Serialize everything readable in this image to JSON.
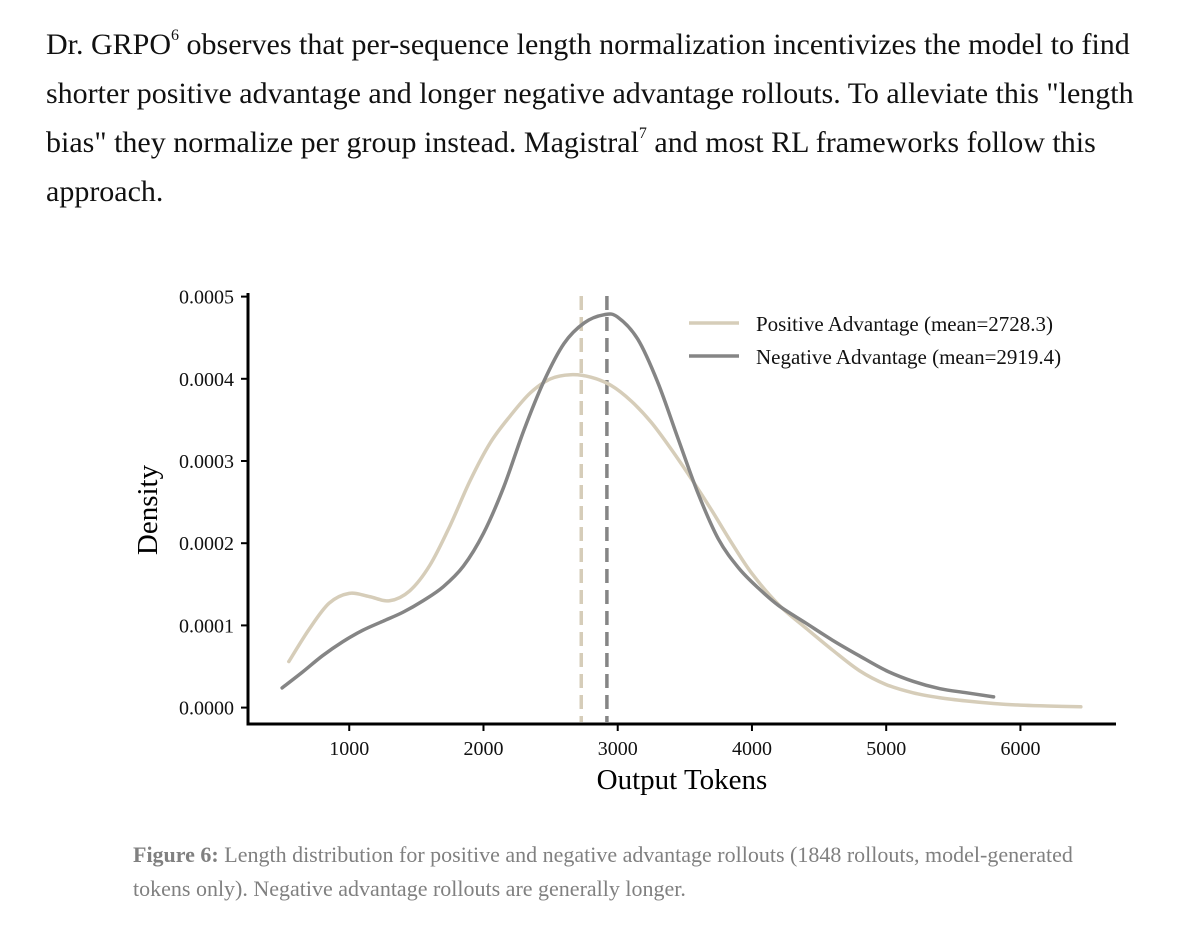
{
  "paragraph": {
    "part1": "Dr. GRPO",
    "sup1": "6",
    "part2": " observes that per-sequence length normalization incentivizes the model to find shorter positive advantage and longer negative advantage rollouts. To alleviate this \"length bias\" they normalize per group instead. Magistral",
    "sup2": "7",
    "part3": " and most RL frameworks follow this approach."
  },
  "chart_data": {
    "type": "line",
    "title": "",
    "xlabel": "Output Tokens",
    "ylabel": "Density",
    "xlim": [
      0,
      7000
    ],
    "ylim": [
      -2e-05,
      0.0005
    ],
    "x_ticks": [
      1000,
      2000,
      3000,
      4000,
      5000,
      6000
    ],
    "x_tick_labels": [
      "1000",
      "2000",
      "3000",
      "4000",
      "5000",
      "6000"
    ],
    "y_ticks": [
      0,
      0.0001,
      0.0002,
      0.0003,
      0.0004,
      0.0005
    ],
    "y_tick_labels": [
      "0.0000",
      "0.0001",
      "0.0002",
      "0.0003",
      "0.0004",
      "0.0005"
    ],
    "grid": false,
    "legend_position": "top-right",
    "series": [
      {
        "name": "Positive Advantage (mean=2728.3)",
        "color": "#d6cdb9",
        "mean": 2728.3,
        "x": [
          550,
          700,
          850,
          1000,
          1150,
          1300,
          1450,
          1600,
          1750,
          1900,
          2050,
          2200,
          2350,
          2500,
          2650,
          2800,
          2950,
          3100,
          3250,
          3400,
          3550,
          3700,
          3850,
          4000,
          4200,
          4400,
          4600,
          4800,
          5000,
          5200,
          5400,
          5600,
          5800,
          6000,
          6200,
          6450
        ],
        "y": [
          5.6e-05,
          9.5e-05,
          0.000127,
          0.000139,
          0.000135,
          0.00013,
          0.000142,
          0.000173,
          0.000221,
          0.000276,
          0.000322,
          0.000355,
          0.000383,
          0.0004,
          0.000405,
          0.000402,
          0.000392,
          0.000373,
          0.000347,
          0.000314,
          0.000278,
          0.00024,
          0.0002,
          0.000163,
          0.000125,
          9.7e-05,
          7e-05,
          4.5e-05,
          2.8e-05,
          1.8e-05,
          1.2e-05,
          8e-06,
          5e-06,
          3e-06,
          2e-06,
          1e-06
        ]
      },
      {
        "name": "Negative Advantage (mean=2919.4)",
        "color": "#858585",
        "mean": 2919.4,
        "x": [
          500,
          650,
          800,
          950,
          1100,
          1250,
          1400,
          1550,
          1700,
          1850,
          2000,
          2150,
          2300,
          2450,
          2600,
          2750,
          2900,
          3000,
          3150,
          3300,
          3450,
          3600,
          3750,
          3900,
          4050,
          4200,
          4400,
          4600,
          4800,
          5000,
          5200,
          5400,
          5600,
          5800
        ],
        "y": [
          2.4e-05,
          4.3e-05,
          6.3e-05,
          8e-05,
          9.4e-05,
          0.000105,
          0.000116,
          0.00013,
          0.000147,
          0.000172,
          0.000212,
          0.000268,
          0.000337,
          0.000397,
          0.000443,
          0.000468,
          0.000478,
          0.000475,
          0.000448,
          0.000395,
          0.000327,
          0.00026,
          0.000205,
          0.00017,
          0.000145,
          0.000124,
          0.000103,
          8.2e-05,
          6.3e-05,
          4.5e-05,
          3.2e-05,
          2.3e-05,
          1.8e-05,
          1.3e-05
        ]
      }
    ]
  },
  "caption": {
    "label": "Figure 6:",
    "text": " Length distribution for positive and negative advantage rollouts (1848 rollouts, model-generated tokens only). Negative advantage rollouts are generally longer."
  }
}
